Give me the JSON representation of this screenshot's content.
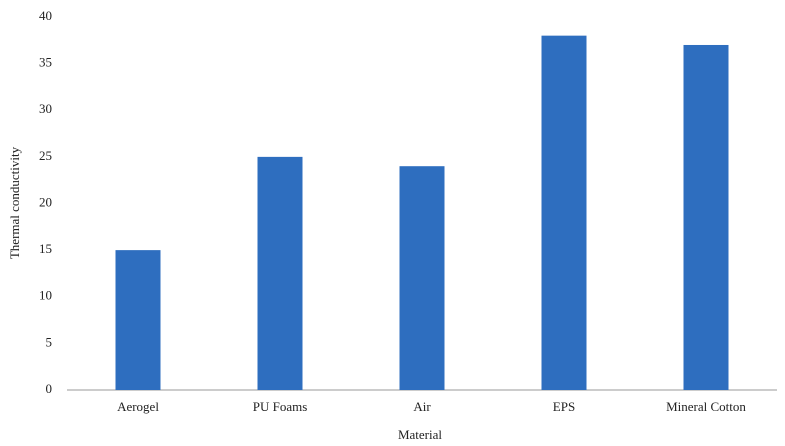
{
  "chart_data": {
    "type": "bar",
    "x_label": "Material",
    "y_label": "Thermal conductivity",
    "categories": [
      "Aerogel",
      "PU Foams",
      "Air",
      "EPS",
      "Mineral Cotton"
    ],
    "values": [
      15,
      25,
      24,
      38,
      37
    ],
    "color": "#2e6ebf",
    "ylim": [
      0,
      40
    ],
    "yticks": [
      0,
      5,
      10,
      15,
      20,
      25,
      30,
      35,
      40
    ],
    "grid": false
  }
}
